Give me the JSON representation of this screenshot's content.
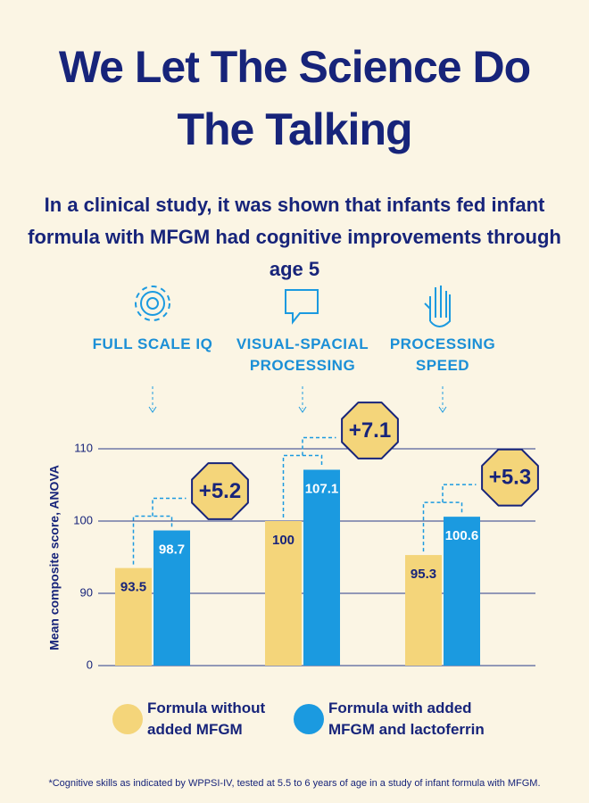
{
  "title": "We Let The Science Do The Talking",
  "subtitle": "In a clinical study, it was shown that infants fed infant formula with MFGM had cognitive improvements through age 5",
  "chart_data": {
    "type": "bar",
    "categories": [
      "FULL SCALE IQ",
      "VISUAL-SPACIAL PROCESSING",
      "PROCESSING SPEED"
    ],
    "series": [
      {
        "name": "Formula without added MFGM",
        "color": "#f4d57a",
        "values": [
          93.5,
          100,
          95.3
        ]
      },
      {
        "name": "Formula with added MFGM and lactoferrin",
        "color": "#1b9ae0",
        "values": [
          98.7,
          107.1,
          100.6
        ]
      }
    ],
    "annotations": [
      "+5.2",
      "+7.1",
      "+5.3"
    ],
    "y_label": "Mean composite score, ANOVA",
    "ylim": [
      0,
      110
    ],
    "yticks": [
      0,
      90,
      100,
      110
    ],
    "grid": true
  },
  "footnote": "*Cognitive skills as indicated by WPPSI-IV, tested at 5.5 to 6 years of age in a study of infant formula with MFGM."
}
